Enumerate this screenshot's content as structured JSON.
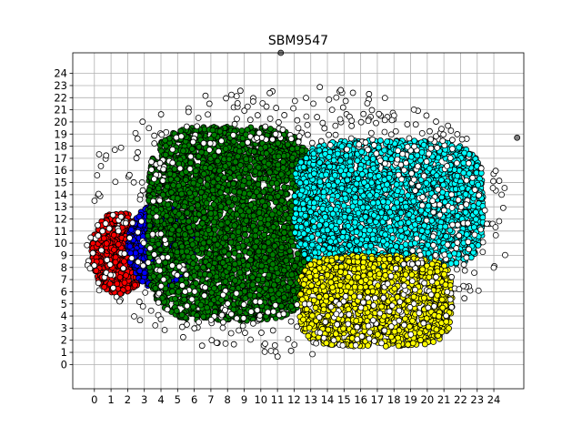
{
  "chart_data": {
    "type": "scatter",
    "title": "SBM9547",
    "xlabel": "",
    "ylabel": "",
    "xlim": [
      -1.3,
      25.8
    ],
    "ylim": [
      -2.0,
      25.7
    ],
    "x_ticks": [
      0,
      1,
      2,
      3,
      4,
      5,
      6,
      7,
      8,
      9,
      10,
      11,
      12,
      13,
      14,
      15,
      16,
      17,
      18,
      19,
      20,
      21,
      22,
      23,
      24
    ],
    "y_ticks": [
      0,
      1,
      2,
      3,
      4,
      5,
      6,
      7,
      8,
      9,
      10,
      11,
      12,
      13,
      14,
      15,
      16,
      17,
      18,
      19,
      20,
      21,
      22,
      23,
      24
    ],
    "grid": true,
    "legend": "none",
    "colors": {
      "red": "#ff0000",
      "blue": "#0000ff",
      "green": "#008000",
      "cyan": "#00ffff",
      "yellow": "#ffff00",
      "noise": "#ffffff",
      "outlier": "#808080",
      "marker_edge": "#000000",
      "grid": "#b0b0b0"
    },
    "clusters": [
      {
        "color": "red",
        "x_range": [
          -0.2,
          3.2
        ],
        "y_range": [
          5.8,
          12.6
        ],
        "shape": "ellipse",
        "approx_points": 700
      },
      {
        "color": "blue",
        "x_range": [
          2.0,
          6.0
        ],
        "y_range": [
          6.2,
          13.3
        ],
        "shape": "ellipse",
        "approx_points": 900
      },
      {
        "color": "green",
        "x_range": [
          3.2,
          13.2
        ],
        "y_range": [
          3.6,
          19.6
        ],
        "shape": "rectangle",
        "approx_points": 3500
      },
      {
        "color": "cyan",
        "x_range": [
          12.0,
          23.4
        ],
        "y_range": [
          7.8,
          18.5
        ],
        "shape": "rectangle",
        "approx_points": 2500
      },
      {
        "color": "yellow",
        "x_range": [
          12.3,
          21.5
        ],
        "y_range": [
          1.5,
          9.0
        ],
        "shape": "rectangle",
        "approx_points": 1500
      },
      {
        "color": "noise",
        "x_range": [
          -0.5,
          25.0
        ],
        "y_range": [
          -0.5,
          23.5
        ],
        "shape": "scattered",
        "approx_points": 600
      }
    ],
    "outliers": [
      {
        "x": 11.2,
        "y": 25.7,
        "color": "outlier"
      },
      {
        "x": 25.4,
        "y": 18.7,
        "color": "outlier"
      }
    ]
  }
}
